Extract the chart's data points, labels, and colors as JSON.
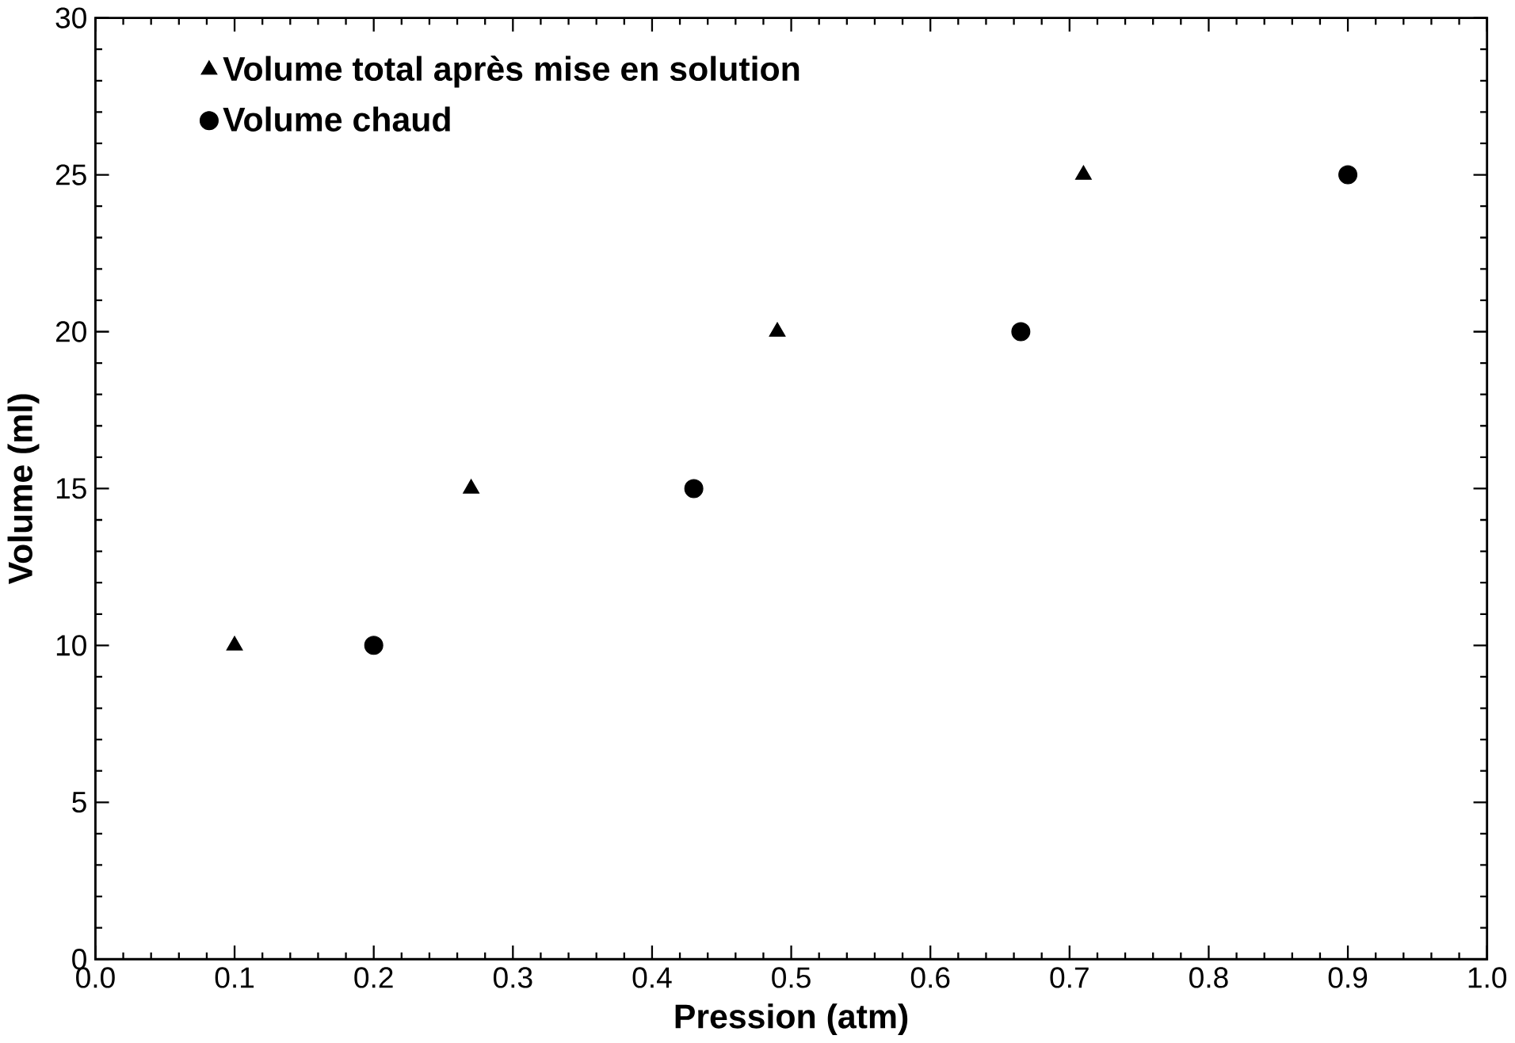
{
  "chart_data": {
    "type": "scatter",
    "xlabel": "Pression (atm)",
    "ylabel": "Volume (ml)",
    "xlim": [
      0,
      1
    ],
    "ylim": [
      0,
      30
    ],
    "xticks": [
      {
        "value": 0,
        "label": "0.0"
      },
      {
        "value": 0.1,
        "label": "0.1"
      },
      {
        "value": 0.2,
        "label": "0.2"
      },
      {
        "value": 0.3,
        "label": "0.3"
      },
      {
        "value": 0.4,
        "label": "0.4"
      },
      {
        "value": 0.5,
        "label": "0.5"
      },
      {
        "value": 0.6,
        "label": "0.6"
      },
      {
        "value": 0.7,
        "label": "0.7"
      },
      {
        "value": 0.8,
        "label": "0.8"
      },
      {
        "value": 0.9,
        "label": "0.9"
      },
      {
        "value": 1,
        "label": "1.0"
      }
    ],
    "yticks": [
      0,
      5,
      10,
      15,
      20,
      25,
      30
    ],
    "legend": "top left",
    "grid": false,
    "series": [
      {
        "name": "Volume total après mise en solution",
        "color": "#000000",
        "marker": "triangle",
        "x": [
          0.1,
          0.27,
          0.49,
          0.71
        ],
        "values": [
          10,
          15,
          20,
          25
        ]
      },
      {
        "name": "Volume chaud",
        "color": "#000000",
        "marker": "circle",
        "x": [
          0.2,
          0.43,
          0.665,
          0.9
        ],
        "values": [
          10,
          15,
          20,
          25
        ]
      }
    ]
  }
}
